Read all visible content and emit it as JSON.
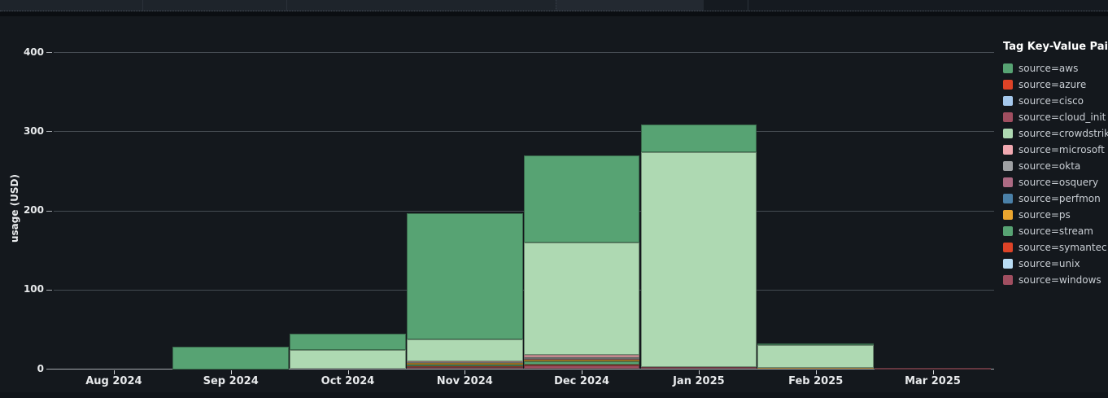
{
  "colors": {
    "background": "#14181d",
    "top_strip": "#1e242b",
    "gridline": "#454b52",
    "axis_line": "#a7abb0",
    "axis_text": "#e8eaec",
    "legend_title_text": "#ffffff",
    "legend_text": "#c9ced4"
  },
  "chart_data": {
    "type": "bar",
    "stacked": true,
    "title": "",
    "ylabel": "usage (USD)",
    "xlabel": "",
    "ylim": [
      0,
      400
    ],
    "yticks": [
      0,
      100,
      200,
      300,
      400
    ],
    "grid": true,
    "legend_title": "Tag Key-Value Pairs",
    "legend_position": "right",
    "categories": [
      "Aug 2024",
      "Sep 2024",
      "Oct 2024",
      "Nov 2024",
      "Dec 2024",
      "Jan 2025",
      "Feb 2025",
      "Mar 2025"
    ],
    "series": [
      {
        "name": "source=aws",
        "color": "#57a373",
        "values": [
          0,
          28,
          20.5,
          159,
          110,
          35,
          2,
          0
        ]
      },
      {
        "name": "source=azure",
        "color": "#dd4327",
        "values": [
          0,
          0,
          0,
          0,
          0,
          0,
          0,
          0
        ]
      },
      {
        "name": "source=cisco",
        "color": "#a5c8ec",
        "values": [
          0,
          0,
          0,
          0,
          0,
          0,
          0,
          0
        ]
      },
      {
        "name": "source=cloud_init",
        "color": "#a04e60",
        "values": [
          0,
          0,
          0,
          0,
          0,
          0,
          0,
          0
        ]
      },
      {
        "name": "source=crowdstrike",
        "color": "#aed9b2",
        "values": [
          0,
          0,
          24,
          28,
          141,
          271,
          28,
          0
        ]
      },
      {
        "name": "source=microsoft",
        "color": "#f0a8b0",
        "values": [
          0,
          0,
          0,
          1,
          4,
          0,
          0,
          0
        ]
      },
      {
        "name": "source=okta",
        "color": "#9fa1a4",
        "values": [
          0,
          0,
          0,
          1.5,
          1.5,
          0,
          0,
          0
        ]
      },
      {
        "name": "source=osquery",
        "color": "#ac6a83",
        "values": [
          0,
          0,
          0,
          0,
          1,
          0,
          0,
          0
        ]
      },
      {
        "name": "source=perfmon",
        "color": "#4a80a8",
        "values": [
          0,
          0,
          0,
          0,
          0,
          0,
          0,
          0
        ]
      },
      {
        "name": "source=ps",
        "color": "#eca62f",
        "values": [
          0,
          0,
          0,
          1.5,
          2,
          0,
          2,
          0
        ]
      },
      {
        "name": "source=stream",
        "color": "#57a373",
        "values": [
          0,
          0,
          0,
          2.5,
          4,
          0,
          0,
          0
        ]
      },
      {
        "name": "source=symantec",
        "color": "#dd4327",
        "values": [
          0,
          0,
          0,
          1,
          1,
          0,
          0,
          0
        ]
      },
      {
        "name": "source=unix",
        "color": "#b9dcf4",
        "values": [
          0,
          0,
          0,
          0,
          0,
          0,
          0,
          0
        ]
      },
      {
        "name": "source=windows",
        "color": "#a04e60",
        "values": [
          0,
          0,
          0,
          2.5,
          5,
          3,
          0,
          1.5
        ]
      }
    ]
  }
}
